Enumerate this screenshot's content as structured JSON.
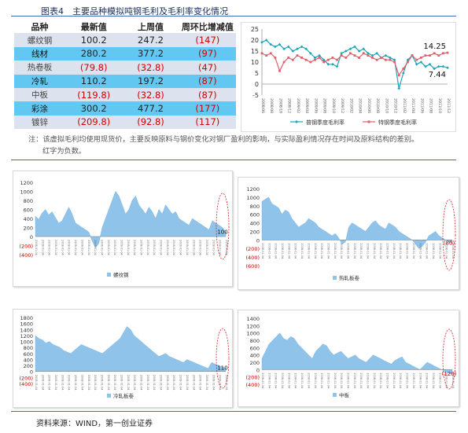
{
  "figure": {
    "title": "图表4　主要品种模拟吨钢毛利及毛利率变化情况",
    "note_line1": "注：该虚拟毛利均使用现货价，主要反映原料与钢价变化对钢厂盈利的影响，与实际盈利情况存在时间及原料结构的差别。",
    "note_line2": "红字为负数。",
    "source": "资料来源：WIND，第一创业证券"
  },
  "colors": {
    "header_row": "#ffffff",
    "row_shade_a": "#dde3ee",
    "row_shade_b": "#62c8f2",
    "negative_text": "#d10000",
    "area_fill": "#8fc3ea",
    "line_teal": "#1aa6b7",
    "line_red": "#e0606b",
    "highlight_ellipse": "#d22222"
  },
  "table": {
    "headers": [
      "品种",
      "最新值",
      "上周值",
      "周环比增减值"
    ],
    "rows": [
      {
        "name": "螺纹钢",
        "latest": "100.2",
        "prev": "247.2",
        "change": "(147)",
        "latest_neg": false,
        "prev_neg": false,
        "change_neg": true
      },
      {
        "name": "线材",
        "latest": "280.2",
        "prev": "377.2",
        "change": "(97)",
        "latest_neg": false,
        "prev_neg": false,
        "change_neg": true
      },
      {
        "name": "热卷板",
        "latest": "(79.8)",
        "prev": "(32.8)",
        "change": "(47)",
        "latest_neg": true,
        "prev_neg": true,
        "change_neg": true
      },
      {
        "name": "冷轧",
        "latest": "110.2",
        "prev": "197.2",
        "change": "(87)",
        "latest_neg": false,
        "prev_neg": false,
        "change_neg": true
      },
      {
        "name": "中板",
        "latest": "(119.8)",
        "prev": "(32.8)",
        "change": "(87)",
        "latest_neg": true,
        "prev_neg": true,
        "change_neg": true
      },
      {
        "name": "彩涂",
        "latest": "300.2",
        "prev": "477.2",
        "change": "(177)",
        "latest_neg": false,
        "prev_neg": false,
        "change_neg": true
      },
      {
        "name": "镀锌",
        "latest": "(209.8)",
        "prev": "(92.8)",
        "change": "(117)",
        "latest_neg": true,
        "prev_neg": true,
        "change_neg": true
      }
    ]
  },
  "chart_data": [
    {
      "type": "line",
      "title": "",
      "x_tick_labels": [
        "2008/06",
        "2008/07",
        "2008/08",
        "2008/09",
        "2008/10",
        "2008/11",
        "2008/12",
        "2009/01",
        "2009/02",
        "2009/03",
        "2009/04",
        "2009/05",
        "2009/06",
        "2009/07",
        "2009/08",
        "2009/09",
        "2009/10",
        "2009/11",
        "2009/12",
        "2010/01",
        "2010/02",
        "2010/03",
        "2010/04",
        "2010/05",
        "2010/06",
        "2010/07",
        "2010/08",
        "2010/09",
        "2010/10",
        "2010/11",
        "2010/12",
        "2011/01",
        "2011/02",
        "2011/03",
        "2011/04",
        "2011/05",
        "2011/06",
        "2011/07",
        "2011/08",
        "2011/09",
        "2011/10",
        "2011/11",
        "2011/12"
      ],
      "ylim": [
        -5,
        25
      ],
      "y_ticks": [
        25,
        20,
        15,
        10,
        5,
        0,
        -5
      ],
      "grid": false,
      "legend_position": "bottom",
      "series": [
        {
          "name": "普钢季度毛利率",
          "color": "#1aa6b7",
          "marker": "diamond",
          "values": [
            19,
            20,
            18,
            17,
            18,
            16,
            17,
            15,
            16,
            17,
            16,
            14,
            12,
            13,
            11,
            9,
            9,
            8,
            14,
            15,
            16,
            17,
            15,
            16,
            14,
            13,
            14,
            12,
            13,
            12,
            11,
            -2,
            5,
            11,
            13,
            9,
            10,
            8,
            9,
            7,
            8,
            8,
            7.44
          ],
          "end_label": "7.44"
        },
        {
          "name": "特钢季度毛利率",
          "color": "#e0606b",
          "marker": "square",
          "values": [
            14,
            13,
            14,
            12,
            6,
            10,
            12,
            11,
            13,
            12,
            11,
            10,
            11,
            12,
            10,
            11,
            12,
            11,
            13,
            12,
            14,
            13,
            12,
            14,
            13,
            12,
            11,
            12,
            11,
            11,
            10,
            4,
            7,
            10,
            13,
            11,
            12,
            13,
            13,
            14,
            13,
            14,
            14.25
          ],
          "end_label": "14.25"
        }
      ]
    },
    {
      "type": "area",
      "series": [
        {
          "name": "螺纹钢"
        }
      ],
      "ylim": [
        -400,
        1200
      ],
      "y_ticks": [
        "1200",
        "1000",
        "800",
        "600",
        "400",
        "200",
        "0",
        "(200)",
        "(400)"
      ],
      "values": [
        450,
        380,
        520,
        600,
        480,
        550,
        420,
        300,
        350,
        500,
        650,
        500,
        300,
        250,
        200,
        150,
        100,
        -100,
        -250,
        -150,
        200,
        400,
        600,
        800,
        1000,
        900,
        700,
        500,
        600,
        800,
        900,
        700,
        600,
        500,
        650,
        550,
        400,
        600,
        500,
        700,
        600,
        500,
        550,
        400,
        350,
        300,
        250,
        400,
        350,
        300,
        250,
        200,
        150,
        350,
        300,
        250,
        200,
        100
      ],
      "end_label": "100"
    },
    {
      "type": "area",
      "series": [
        {
          "name": "热轧板卷"
        }
      ],
      "ylim": [
        -600,
        1200
      ],
      "y_ticks": [
        "1200",
        "1000",
        "800",
        "600",
        "400",
        "200",
        "0",
        "(200)",
        "(400)",
        "(600)"
      ],
      "values": [
        900,
        950,
        1000,
        850,
        800,
        750,
        600,
        700,
        650,
        500,
        400,
        300,
        350,
        400,
        500,
        450,
        400,
        300,
        250,
        200,
        150,
        100,
        150,
        50,
        -100,
        -50,
        300,
        400,
        350,
        300,
        250,
        200,
        300,
        400,
        450,
        350,
        300,
        250,
        400,
        350,
        300,
        200,
        150,
        100,
        50,
        0,
        -100,
        -200,
        -150,
        -50,
        100,
        150,
        200,
        100,
        50,
        0,
        -50,
        -80
      ],
      "end_label": "(80)"
    },
    {
      "type": "area",
      "series": [
        {
          "name": "冷轧板卷"
        }
      ],
      "ylim": [
        -400,
        1800
      ],
      "y_ticks": [
        "1800",
        "1600",
        "1400",
        "1200",
        "1000",
        "800",
        "600",
        "400",
        "200",
        "0",
        "(200)",
        "(400)"
      ],
      "values": [
        1200,
        1100,
        1050,
        950,
        1000,
        900,
        850,
        800,
        700,
        650,
        600,
        700,
        800,
        900,
        850,
        800,
        750,
        700,
        650,
        600,
        700,
        800,
        900,
        1000,
        1100,
        1300,
        1500,
        1400,
        1200,
        1100,
        1000,
        900,
        800,
        700,
        600,
        500,
        550,
        600,
        500,
        450,
        400,
        350,
        300,
        400,
        350,
        300,
        250,
        200,
        150,
        100,
        300,
        250,
        200,
        150,
        110
      ],
      "end_label": "110"
    },
    {
      "type": "area",
      "series": [
        {
          "name": "中板"
        }
      ],
      "ylim": [
        -400,
        1400
      ],
      "y_ticks": [
        "1400",
        "1200",
        "1000",
        "800",
        "600",
        "400",
        "200",
        "0",
        "(200)",
        "(400)"
      ],
      "values": [
        300,
        500,
        700,
        800,
        900,
        1000,
        850,
        800,
        900,
        850,
        700,
        600,
        500,
        400,
        300,
        500,
        600,
        700,
        650,
        500,
        400,
        450,
        500,
        400,
        300,
        350,
        400,
        300,
        250,
        200,
        300,
        400,
        350,
        300,
        250,
        200,
        150,
        250,
        300,
        350,
        200,
        150,
        100,
        50,
        0,
        100,
        200,
        150,
        100,
        50,
        0,
        -50,
        -100,
        -120
      ],
      "end_label": "(120)"
    }
  ]
}
